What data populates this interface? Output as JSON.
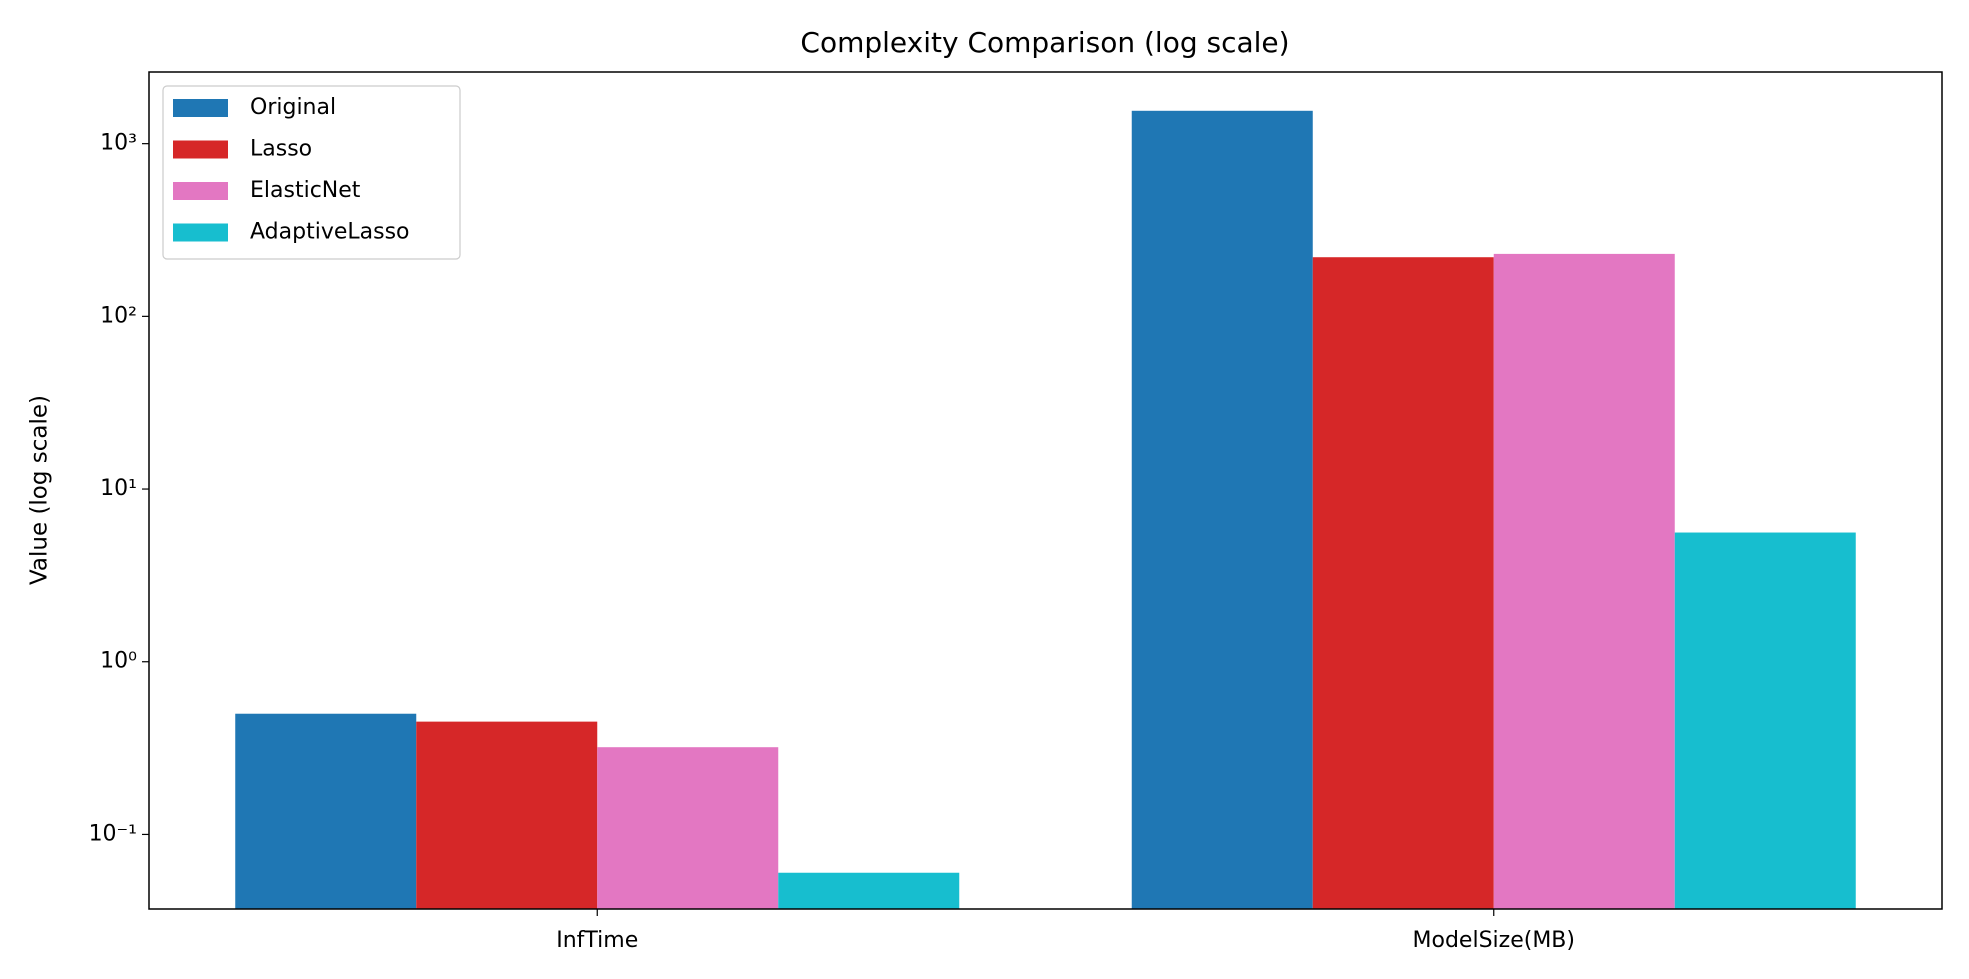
{
  "chart_data": {
    "type": "bar",
    "title": "Complexity Comparison (log scale)",
    "y_label": "Value (log scale)",
    "categories": [
      "InfTime",
      "ModelSize(MB)"
    ],
    "series": [
      {
        "name": "Original",
        "color": "#1f77b4",
        "values": [
          0.5,
          1550
        ]
      },
      {
        "name": "Lasso",
        "color": "#d62728",
        "values": [
          0.45,
          220
        ]
      },
      {
        "name": "ElasticNet",
        "color": "#e377c2",
        "values": [
          0.32,
          230
        ]
      },
      {
        "name": "AdaptiveLasso",
        "color": "#17becf",
        "values": [
          0.06,
          5.6
        ]
      }
    ],
    "log_scale": true,
    "ylim": [
      0.037,
      2600
    ],
    "yticks": [
      {
        "value": 0.1,
        "label": "10⁻¹"
      },
      {
        "value": 1,
        "label": "10⁰"
      },
      {
        "value": 10,
        "label": "10¹"
      },
      {
        "value": 100,
        "label": "10²"
      },
      {
        "value": 1000,
        "label": "10³"
      }
    ],
    "grid": false,
    "legend": "upper left"
  }
}
